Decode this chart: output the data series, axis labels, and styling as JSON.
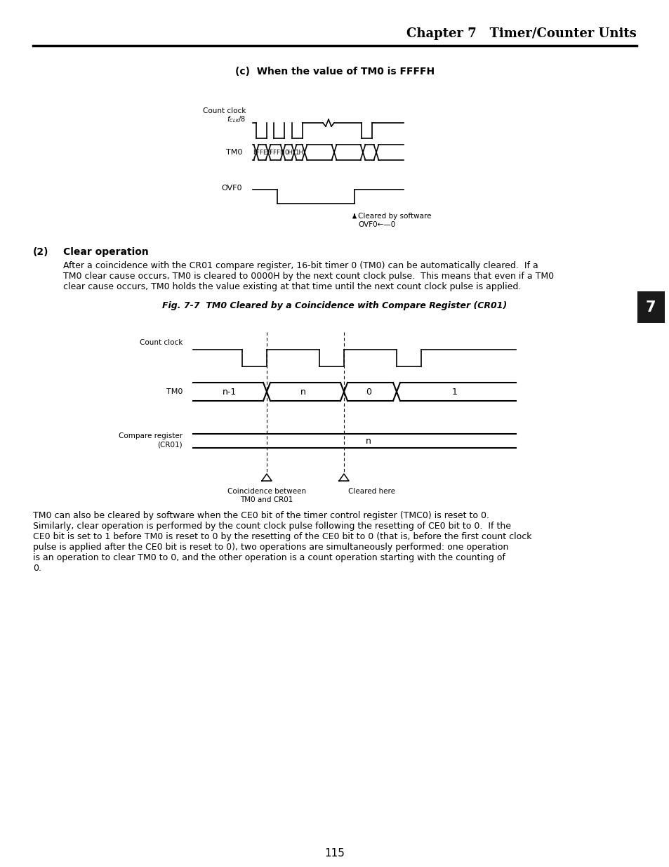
{
  "page_title": "Chapter 7   Timer/Counter Units",
  "page_number": "115",
  "section_c_title": "(c)  When the value of TM0 is FFFFH",
  "body_text1_line1": "After a coincidence with the CR01 compare register, 16-bit timer 0 (TM0) can be automatically cleared.  If a",
  "body_text1_line2": "TM0 clear cause occurs, TM0 is cleared to 0000H by the next count clock pulse.  This means that even if a TM0",
  "body_text1_line3": "clear cause occurs, TM0 holds the value existing at that time until the next count clock pulse is applied.",
  "fig_title": "Fig. 7-7  TM0 Cleared by a Coincidence with Compare Register (CR01)",
  "body_text2_line1": "TM0 can also be cleared by software when the CE0 bit of the timer control register (TMC0) is reset to 0.",
  "body_text2_line2": "Similarly, clear operation is performed by the count clock pulse following the resetting of CE0 bit to 0.  If the",
  "body_text2_line3": "CE0 bit is set to 1 before TM0 is reset to 0 by the resetting of the CE0 bit to 0 (that is, before the first count clock",
  "body_text2_line4": "pulse is applied after the CE0 bit is reset to 0), two operations are simultaneously performed: one operation",
  "body_text2_line5": "is an operation to clear TM0 to 0, and the other operation is a count operation starting with the counting of",
  "body_text2_line6": "0.",
  "bg_color": "#ffffff",
  "text_color": "#000000",
  "line_color": "#000000",
  "tab_number": "7"
}
